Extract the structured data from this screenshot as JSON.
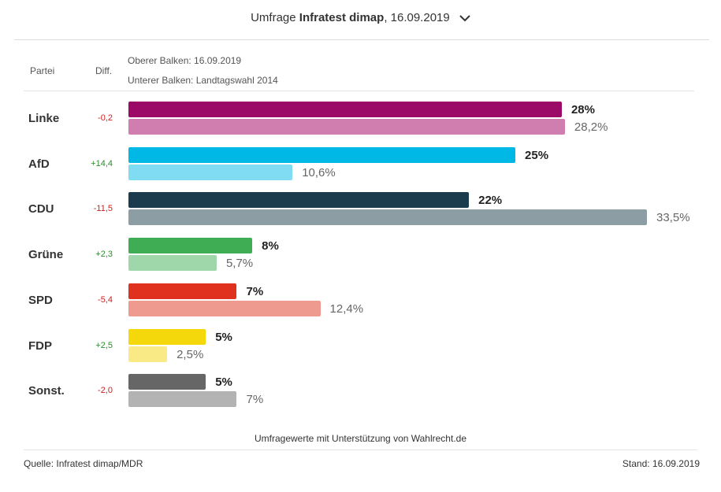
{
  "selector": {
    "prefix": "Umfrage ",
    "institute": "Infratest dimap",
    "date": ", 16.09.2019",
    "icon": "chevron-down-icon"
  },
  "header": {
    "party_label": "Partei",
    "diff_label": "Diff.",
    "legend_upper": "Oberer Balken: 16.09.2019",
    "legend_lower": "Unterer Balken: Landtagswahl 2014"
  },
  "chart_data": {
    "type": "bar",
    "orientation": "horizontal",
    "categories": [
      "Linke",
      "AfD",
      "CDU",
      "Grüne",
      "SPD",
      "FDP",
      "Sonst."
    ],
    "series": [
      {
        "name": "Oberer Balken: 16.09.2019",
        "values": [
          28,
          25,
          22,
          8,
          7,
          5,
          5
        ],
        "labels": [
          "28%",
          "25%",
          "22%",
          "8%",
          "7%",
          "5%",
          "5%"
        ],
        "colors": [
          "#9c0a67",
          "#00b8e6",
          "#1a3c4c",
          "#3fad54",
          "#e0311f",
          "#f5d80c",
          "#666666"
        ]
      },
      {
        "name": "Unterer Balken: Landtagswahl 2014",
        "values": [
          28.2,
          10.6,
          33.5,
          5.7,
          12.4,
          2.5,
          7
        ],
        "labels": [
          "28,2%",
          "10,6%",
          "33,5%",
          "5,7%",
          "12,4%",
          "2,5%",
          "7%"
        ],
        "colors": [
          "#d07db0",
          "#7fdcf2",
          "#8c9ea4",
          "#9fd6aa",
          "#ef9a8f",
          "#faea86",
          "#b3b3b3"
        ]
      }
    ],
    "diff": [
      "-0,2",
      "+14,4",
      "-11,5",
      "+2,3",
      "-5,4",
      "+2,5",
      "-2,0"
    ],
    "diff_colors": {
      "positive": "#2e8b2e",
      "negative": "#cc1f1f"
    },
    "xlim": [
      0,
      35
    ]
  },
  "footer": {
    "note": "Umfragewerte mit Unterstützung von Wahlrecht.de",
    "source": "Quelle: Infratest dimap/MDR",
    "stand": "Stand: 16.09.2019"
  }
}
